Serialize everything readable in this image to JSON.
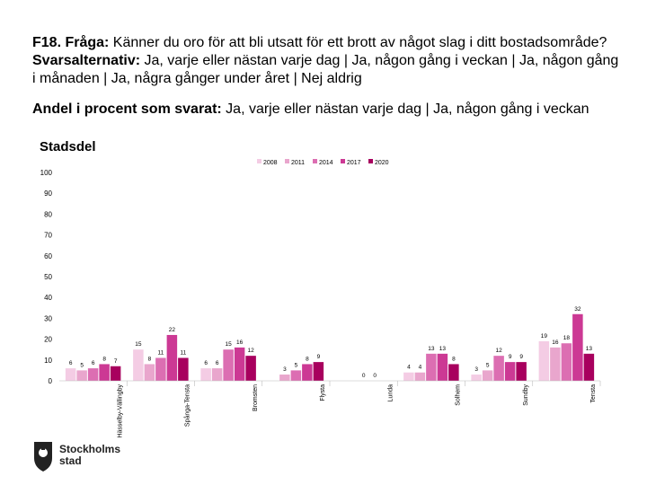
{
  "header": {
    "question_label": "F18. Fråga:",
    "question_text": " Känner du oro för att bli utsatt för ett brott av något slag i ditt bostadsområde?",
    "alternatives_label": "Svarsalternativ:",
    "alternatives_text": " Ja, varje eller nästan varje dag | Ja, någon gång i veckan | Ja, någon gång i månaden | Ja, några gånger under året | Nej aldrig"
  },
  "subtitle": {
    "label": "Andel i procent som svarat:",
    "text": " Ja, varje eller nästan varje dag | Ja, någon gång i veckan"
  },
  "logo": {
    "line1": "Stockholms",
    "line2": "stad",
    "icon": "stockholm-crest-icon"
  },
  "chart_data": {
    "type": "bar",
    "title": "",
    "xlabel": "Stadsdel",
    "ylabel": "",
    "ylim": [
      0,
      100
    ],
    "yticks": [
      0,
      10,
      20,
      30,
      40,
      50,
      60,
      70,
      80,
      90,
      100
    ],
    "legend_position": "top-center",
    "categories": [
      "Hässelby-Vällingby",
      "Spånga-Tensta",
      "Bromsten",
      "Flysta",
      "Lunda",
      "Solhem",
      "Sundby",
      "Tensta"
    ],
    "category_labels": [
      "Hässelby-Vällingby",
      "Spånga-Tensta",
      "Bromsten",
      "Flysta",
      "Lunda",
      "Solhem",
      "Sundby",
      "Tensta"
    ],
    "series": [
      {
        "name": "2008",
        "color": "#f4cce4",
        "values": [
          6,
          15,
          6,
          null,
          null,
          4,
          3,
          19
        ]
      },
      {
        "name": "2011",
        "color": "#e9a6cd",
        "values": [
          5,
          8,
          6,
          3,
          null,
          4,
          5,
          16
        ]
      },
      {
        "name": "2014",
        "color": "#dc6eb2",
        "values": [
          6,
          11,
          15,
          5,
          0,
          13,
          12,
          18
        ]
      },
      {
        "name": "2017",
        "color": "#cc3994",
        "values": [
          8,
          22,
          16,
          8,
          0,
          13,
          9,
          32
        ]
      },
      {
        "name": "2020",
        "color": "#a8005e",
        "values": [
          7,
          11,
          12,
          9,
          null,
          8,
          9,
          13
        ]
      }
    ],
    "data_labels": [
      [
        "6",
        "5",
        "6",
        "8",
        "7"
      ],
      [
        "15",
        "8",
        "11",
        "22",
        "11"
      ],
      [
        "6",
        "6",
        "15",
        "16",
        "12"
      ],
      [
        "",
        "3",
        "5",
        "8",
        "9"
      ],
      [
        "",
        "",
        "0",
        "0",
        ""
      ],
      [
        "4",
        "4",
        "13",
        "13",
        "8"
      ],
      [
        "3",
        "5",
        "12",
        "9",
        "9"
      ],
      [
        "19",
        "16",
        "18",
        "32",
        "13"
      ]
    ]
  }
}
